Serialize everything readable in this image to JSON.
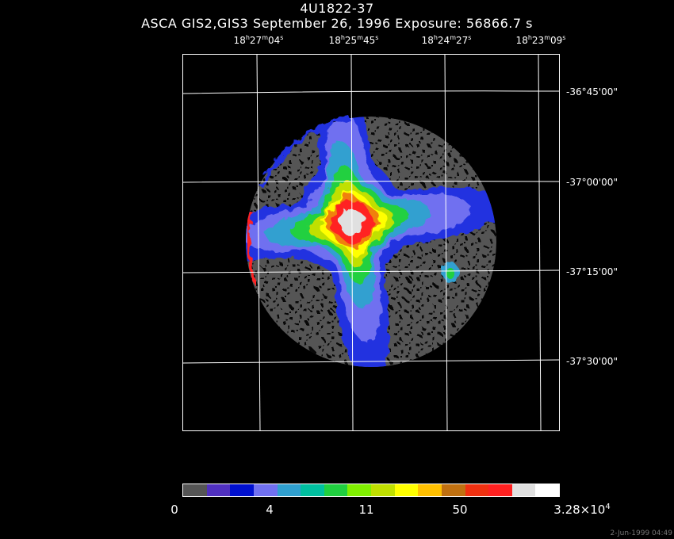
{
  "title": "4U1822-37",
  "subtitle": "ASCA GIS2,GIS3 September 26, 1996 Exposure: 56866.7 s",
  "ra_ticks": [
    {
      "h": "18",
      "m": "27",
      "s": "04"
    },
    {
      "h": "18",
      "m": "25",
      "s": "45"
    },
    {
      "h": "18",
      "m": "24",
      "s": "27"
    },
    {
      "h": "18",
      "m": "23",
      "s": "09"
    }
  ],
  "dec_ticks": [
    "-36°45'00\"",
    "-37°00'00\"",
    "-37°15'00\"",
    "-37°30'00\""
  ],
  "colorbar": {
    "labels": [
      "0",
      "4",
      "11",
      "50",
      "3.28×10"
    ],
    "max_exponent": "4",
    "colors": [
      "#555555",
      "#5030c0",
      "#0010d0",
      "#7070f0",
      "#30a0d0",
      "#00c0a0",
      "#20d040",
      "#80f000",
      "#c0e000",
      "#ffff00",
      "#ffc000",
      "#c07010",
      "#f03010",
      "#ff2020",
      "#e0e0e0",
      "#ffffff"
    ]
  },
  "timestamp": "2-Jun-1999 04:49",
  "image_colors": {
    "dim": "#555555",
    "blue": "#2030e0",
    "violet": "#7070f0",
    "cyan": "#30a0d0",
    "green": "#20d040",
    "lime": "#c0e000",
    "yellow": "#ffff00",
    "orange": "#f08010",
    "red": "#ff2020",
    "core": "#e0e0e0"
  }
}
